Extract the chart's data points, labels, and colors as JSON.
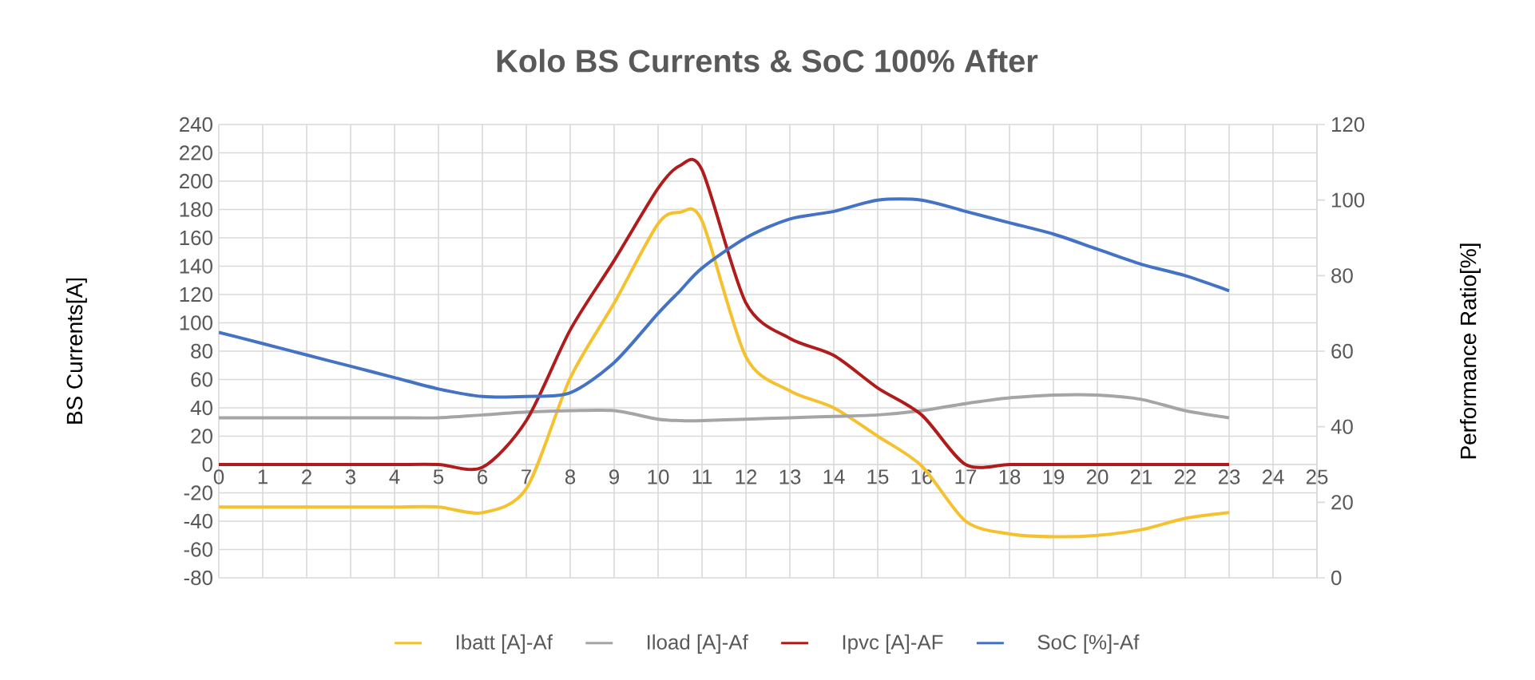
{
  "chart_data": {
    "type": "line",
    "title": "Kolo BS Currents & SoC 100% After",
    "ylabel": "BS Currents[A]",
    "y2label": "Performance Ratio[%]",
    "x": [
      0,
      1,
      2,
      3,
      4,
      5,
      6,
      7,
      8,
      9,
      10,
      10.5,
      11,
      12,
      13,
      14,
      15,
      16,
      17,
      18,
      19,
      20,
      21,
      22,
      23
    ],
    "xlim": [
      0,
      25
    ],
    "xticks": [
      0,
      1,
      2,
      3,
      4,
      5,
      6,
      7,
      8,
      9,
      10,
      11,
      12,
      13,
      14,
      15,
      16,
      17,
      18,
      19,
      20,
      21,
      22,
      23,
      24,
      25
    ],
    "ylim": [
      -80,
      240
    ],
    "yticks": [
      -80,
      -60,
      -40,
      -20,
      0,
      20,
      40,
      60,
      80,
      100,
      120,
      140,
      160,
      180,
      200,
      220,
      240
    ],
    "y2lim": [
      0,
      120
    ],
    "y2ticks": [
      0,
      20,
      40,
      60,
      80,
      100,
      120
    ],
    "grid": true,
    "legend": "bottom",
    "marker": "none",
    "series": [
      {
        "name": "Ibatt [A]-Af",
        "color": "#f5c12e",
        "values": [
          -30,
          -30,
          -30,
          -30,
          -30,
          -30,
          -34,
          -17,
          61,
          114,
          170,
          178,
          172,
          76,
          52,
          40,
          20,
          -1,
          -40,
          -49,
          -51,
          -50,
          -46,
          -38,
          -34
        ]
      },
      {
        "name": "Iload [A]-Af",
        "color": "#a5a5a5",
        "values": [
          33,
          33,
          33,
          33,
          33,
          33,
          35,
          37,
          38,
          38,
          32,
          31,
          31,
          32,
          33,
          34,
          35,
          38,
          43,
          47,
          49,
          49,
          46,
          38,
          33
        ]
      },
      {
        "name": "Ipvc [A]-AF",
        "color": "#b01c1c",
        "values": [
          0,
          0,
          0,
          0,
          0,
          0,
          -2,
          31,
          95,
          144,
          195,
          211,
          208,
          114,
          89,
          77,
          54,
          35,
          0,
          0,
          0,
          0,
          0,
          0,
          0
        ]
      },
      {
        "name": "SoC [%]-Af",
        "color": "#4472c4",
        "axis": "y2",
        "values": [
          65,
          62,
          59,
          56,
          53,
          50,
          48,
          48,
          49,
          57,
          70,
          76,
          82,
          90,
          95,
          97,
          100,
          100,
          97,
          94,
          91,
          87,
          83,
          80,
          76
        ]
      }
    ]
  }
}
